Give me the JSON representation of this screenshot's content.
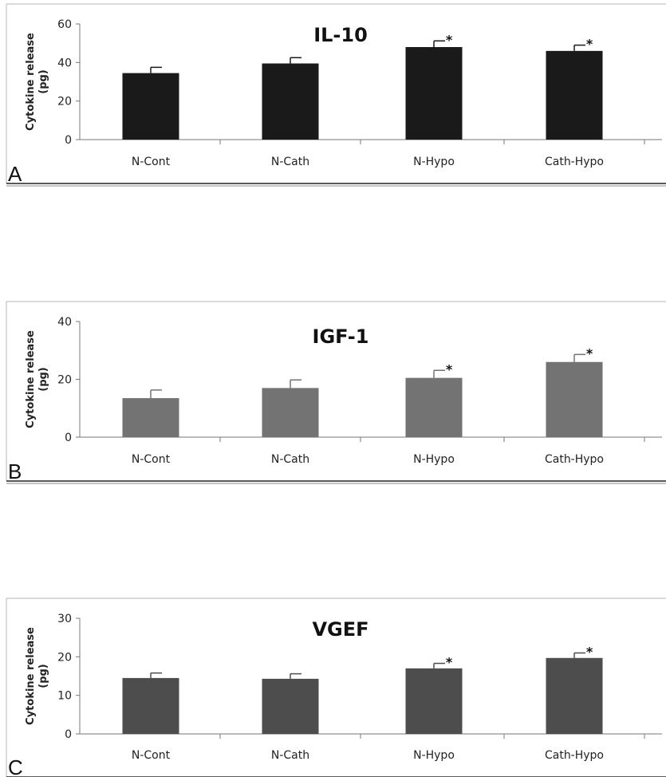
{
  "chart_data": [
    {
      "type": "bar",
      "panel_label": "A",
      "title": "IL-10",
      "ylabel_line1": "Cytokine release",
      "ylabel_line2": "(pg)",
      "xlabel": "",
      "categories": [
        "N-Cont",
        "N-Cath",
        "N-Hypo",
        "Cath-Hypo"
      ],
      "series": [
        {
          "values": [
            34.5,
            39.5,
            48,
            46
          ],
          "errors": [
            3,
            3,
            3.2,
            3
          ],
          "color": "#1a1a1a"
        }
      ],
      "significance": [
        "",
        "",
        "*",
        "*"
      ],
      "ylim": [
        0,
        60
      ],
      "yticks": [
        0,
        20,
        40,
        60
      ],
      "grid": false
    },
    {
      "type": "bar",
      "panel_label": "B",
      "title": "IGF-1",
      "ylabel_line1": "Cytokine release",
      "ylabel_line2": "(pg)",
      "xlabel": "",
      "categories": [
        "N-Cont",
        "N-Cath",
        "N-Hypo",
        "Cath-Hypo"
      ],
      "series": [
        {
          "values": [
            13.5,
            17,
            20.5,
            26
          ],
          "errors": [
            2.8,
            2.8,
            2.6,
            2.6
          ],
          "color": "#737373"
        }
      ],
      "significance": [
        "",
        "",
        "*",
        "*"
      ],
      "ylim": [
        0,
        40
      ],
      "yticks": [
        0,
        20,
        40
      ],
      "grid": false
    },
    {
      "type": "bar",
      "panel_label": "C",
      "title": "VGEF",
      "ylabel_line1": "Cytokine release",
      "ylabel_line2": "(pg)",
      "xlabel": "",
      "categories": [
        "N-Cont",
        "N-Cath",
        "N-Hypo",
        "Cath-Hypo"
      ],
      "series": [
        {
          "values": [
            14.5,
            14.3,
            17,
            19.7
          ],
          "errors": [
            1.3,
            1.3,
            1.3,
            1.3
          ],
          "color": "#4d4d4d"
        }
      ],
      "significance": [
        "",
        "",
        "*",
        "*"
      ],
      "ylim": [
        0,
        30
      ],
      "yticks": [
        0,
        10,
        20,
        30
      ],
      "grid": false
    }
  ]
}
